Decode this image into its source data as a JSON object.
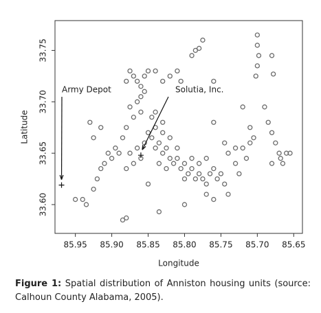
{
  "chart_data": {
    "type": "scatter",
    "x_label": "Longitude",
    "y_label": "Latitude",
    "caption_label": "Figure 1:",
    "caption": "Spatial distribution of Anniston housing units (source: Calhoun County Alabama, 2005).",
    "xlim": [
      85.978,
      85.638
    ],
    "ylim": [
      33.572,
      33.779
    ],
    "xticks": [
      85.95,
      {
        "value": 85.9,
        "label": "85.90"
      },
      85.85,
      {
        "value": 85.8,
        "label": "85.80"
      },
      85.75,
      {
        "value": 85.7,
        "label": "85.70"
      },
      85.65
    ],
    "yticks": [
      {
        "value": 33.6,
        "label": "33.60"
      },
      33.65,
      {
        "value": 33.7,
        "label": "33.70"
      },
      33.75
    ],
    "color": "#6b6b6b",
    "annotations": [
      {
        "text": "Army Depot",
        "x": 85.969,
        "y": 33.619
      },
      {
        "text": "Solutia, Inc.",
        "x": 85.86,
        "y": 33.648
      }
    ],
    "x": [
      85.84,
      85.835,
      85.83,
      85.825,
      85.82,
      85.815,
      85.81,
      85.805,
      85.8,
      85.795,
      85.79,
      85.785,
      85.78,
      85.775,
      85.77,
      85.765,
      85.76,
      85.755,
      85.75,
      85.745,
      85.82,
      85.83,
      85.84,
      85.845,
      85.835,
      85.825,
      85.81,
      85.8,
      85.79,
      85.78,
      85.77,
      85.86,
      85.87,
      85.88,
      85.875,
      85.865,
      85.855,
      85.85,
      85.845,
      85.84,
      85.83,
      85.87,
      85.865,
      85.86,
      85.855,
      85.86,
      85.865,
      85.875,
      85.88,
      85.85,
      85.855,
      85.86,
      85.87,
      85.875,
      85.84,
      85.83,
      85.82,
      85.81,
      85.805,
      85.79,
      85.785,
      85.775,
      85.78,
      85.76,
      85.7,
      85.7,
      85.698,
      85.7,
      85.702,
      85.68,
      85.678,
      85.71,
      85.705,
      85.71,
      85.72,
      85.715,
      85.73,
      85.74,
      85.73,
      85.725,
      85.69,
      85.685,
      85.72,
      85.68,
      85.675,
      85.67,
      85.668,
      85.66,
      85.665,
      85.68,
      85.655,
      85.95,
      85.94,
      85.935,
      85.925,
      85.92,
      85.915,
      85.91,
      85.905,
      85.9,
      85.895,
      85.89,
      85.925,
      85.915,
      85.93,
      85.885,
      85.88,
      85.88,
      85.885,
      85.835,
      85.77,
      85.76,
      85.74,
      85.8,
      85.745,
      85.76,
      85.85
    ],
    "y": [
      33.655,
      33.66,
      33.65,
      33.655,
      33.645,
      33.64,
      33.645,
      33.635,
      33.64,
      33.63,
      33.635,
      33.625,
      33.63,
      33.625,
      33.62,
      33.63,
      33.635,
      33.625,
      33.63,
      33.62,
      33.665,
      33.67,
      33.675,
      33.665,
      33.64,
      33.635,
      33.655,
      33.625,
      33.645,
      33.64,
      33.645,
      33.645,
      33.64,
      33.635,
      33.65,
      33.655,
      33.66,
      33.67,
      33.685,
      33.69,
      33.68,
      33.725,
      33.72,
      33.715,
      33.71,
      33.705,
      33.7,
      33.73,
      33.72,
      33.73,
      33.725,
      33.69,
      33.685,
      33.695,
      33.73,
      33.72,
      33.725,
      33.73,
      33.72,
      33.745,
      33.75,
      33.76,
      33.752,
      33.72,
      33.765,
      33.755,
      33.745,
      33.735,
      33.725,
      33.745,
      33.727,
      33.675,
      33.665,
      33.66,
      33.655,
      33.645,
      33.655,
      33.65,
      33.64,
      33.63,
      33.695,
      33.68,
      33.695,
      33.67,
      33.66,
      33.65,
      33.645,
      33.65,
      33.64,
      33.64,
      33.65,
      33.605,
      33.605,
      33.6,
      33.615,
      33.625,
      33.635,
      33.64,
      33.65,
      33.645,
      33.655,
      33.65,
      33.665,
      33.675,
      33.68,
      33.665,
      33.675,
      33.587,
      33.585,
      33.593,
      33.61,
      33.605,
      33.61,
      33.6,
      33.66,
      33.68,
      33.62
    ]
  }
}
